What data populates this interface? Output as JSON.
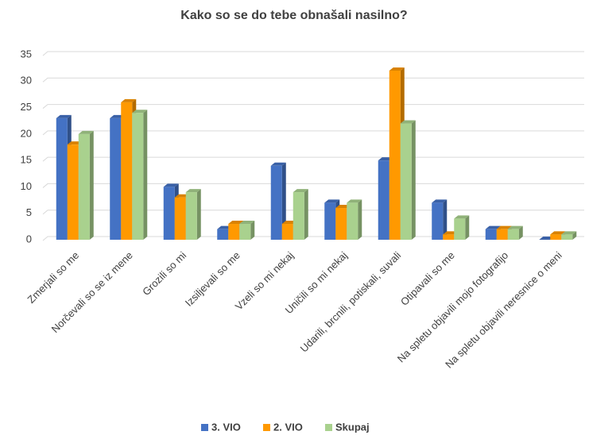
{
  "chart_data": {
    "type": "bar3d",
    "title": "Kako so se do tebe obnašali nasilno?",
    "categories": [
      "Zmerjali so me",
      "Norčevali so se iz mene",
      "Grozili so mi",
      "Izsiljevali so me",
      "Vzeli so mi nekaj",
      "Uničili so mi nekaj",
      "Udarili, brcnili, potiskali, suvali",
      "Otipavali so me",
      "Na spletu objavili mojo fotografijo",
      "Na spletu objavili neresnice o meni"
    ],
    "series": [
      {
        "name": "3. VIO",
        "color": "#4472c4",
        "values": [
          23,
          23,
          10,
          2,
          14,
          7,
          15,
          7,
          2,
          0
        ]
      },
      {
        "name": "2. VIO",
        "color": "#ff9900",
        "values": [
          18,
          26,
          8,
          3,
          3,
          6,
          32,
          1,
          2,
          1
        ]
      },
      {
        "name": "Skupaj",
        "color": "#a9d18e",
        "values": [
          20,
          24,
          9,
          3,
          9,
          7,
          22,
          4,
          2,
          1
        ]
      }
    ],
    "ylim": [
      0,
      35
    ],
    "yticks": [
      0,
      5,
      10,
      15,
      20,
      25,
      30,
      35
    ],
    "grid": true,
    "legend": "bottom"
  }
}
